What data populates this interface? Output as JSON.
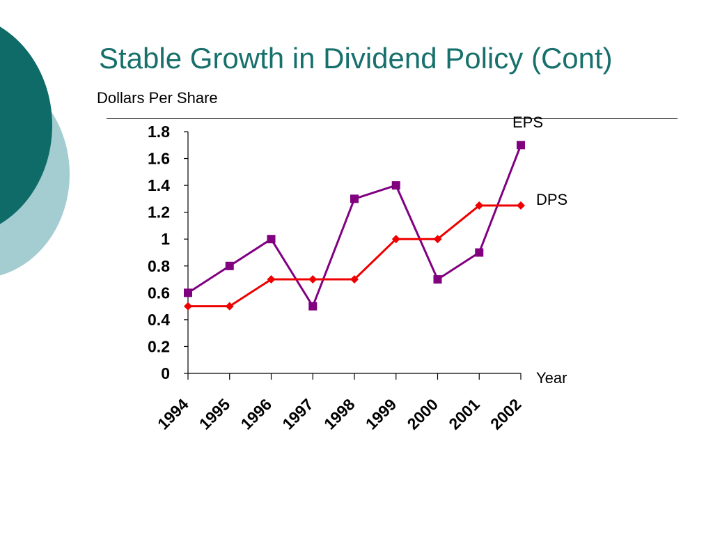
{
  "slide": {
    "title": "Stable Growth in Dividend Policy (Cont)",
    "subtitle": "Dollars Per Share",
    "colors": {
      "title": "#17706c",
      "deco_dark": "#0e6b68",
      "deco_light": "#a3cdd0"
    }
  },
  "chart_data": {
    "type": "line",
    "title": "",
    "xlabel": "Year",
    "ylabel": "",
    "categories": [
      "1994",
      "1995",
      "1996",
      "1997",
      "1998",
      "1999",
      "2000",
      "2001",
      "2002"
    ],
    "ylim": [
      0,
      1.8
    ],
    "yticks": [
      "0",
      "0.2",
      "0.4",
      "0.6",
      "0.8",
      "1",
      "1.2",
      "1.4",
      "1.6",
      "1.8"
    ],
    "grid": false,
    "legend": "inline labels at series ends",
    "series": [
      {
        "name": "EPS",
        "color": "#800080",
        "marker": "square",
        "values": [
          0.6,
          0.8,
          1.0,
          0.5,
          1.3,
          1.4,
          0.7,
          0.9,
          1.7
        ]
      },
      {
        "name": "DPS",
        "color": "#ee0000",
        "marker": "diamond",
        "values": [
          0.5,
          0.5,
          0.7,
          0.7,
          0.7,
          1.0,
          1.0,
          1.25,
          1.25
        ]
      }
    ]
  }
}
